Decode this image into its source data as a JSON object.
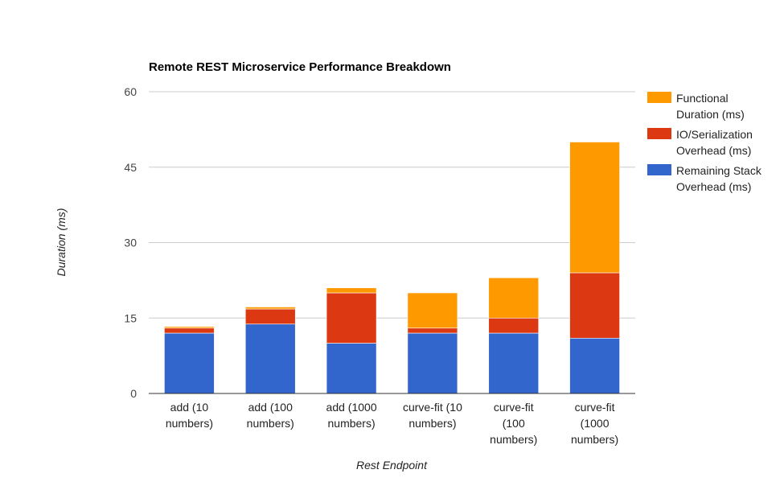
{
  "chart_data": {
    "type": "bar",
    "stacked": true,
    "title": "Remote REST Microservice Performance Breakdown",
    "xlabel": "Rest Endpoint",
    "ylabel": "Duration (ms)",
    "ylim": [
      0,
      60
    ],
    "yticks": [
      "0",
      "15",
      "30",
      "45",
      "60"
    ],
    "grid": true,
    "legend_position": "right",
    "categories": [
      [
        "add (10",
        "numbers)"
      ],
      [
        "add (100",
        "numbers)"
      ],
      [
        "add (1000",
        "numbers)"
      ],
      [
        "curve-fit (10",
        "numbers)"
      ],
      [
        "curve-fit",
        "(100",
        "numbers)"
      ],
      [
        "curve-fit",
        "(1000",
        "numbers)"
      ]
    ],
    "series": [
      {
        "name": [
          "Remaining Stack",
          "Overhead (ms)"
        ],
        "color": "#3366cc",
        "values": [
          12,
          13.8,
          10,
          12,
          12,
          11
        ]
      },
      {
        "name": [
          "IO/Serialization",
          "Overhead (ms)"
        ],
        "color": "#dc3912",
        "values": [
          1,
          3,
          10,
          1,
          3,
          13
        ]
      },
      {
        "name": [
          "Functional",
          "Duration (ms)"
        ],
        "color": "#ff9900",
        "values": [
          0.3,
          0.4,
          1,
          7,
          8,
          26
        ]
      }
    ]
  }
}
